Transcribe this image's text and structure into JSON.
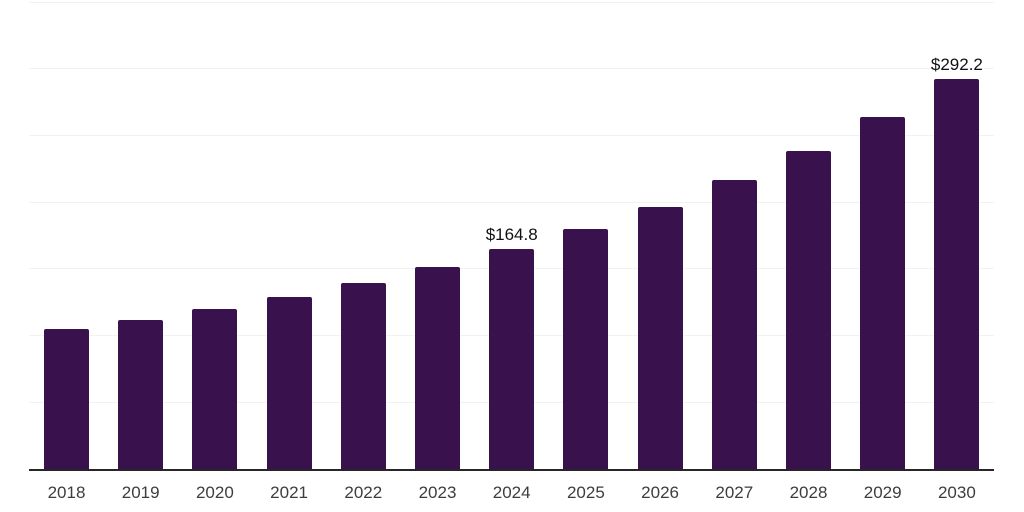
{
  "chart_data": {
    "type": "bar",
    "title": "",
    "xlabel": "",
    "ylabel": "",
    "categories": [
      "2018",
      "2019",
      "2020",
      "2021",
      "2022",
      "2023",
      "2024",
      "2025",
      "2026",
      "2027",
      "2028",
      "2029",
      "2030"
    ],
    "values": [
      105.0,
      111.4,
      120.2,
      129.0,
      139.4,
      151.8,
      164.8,
      180.1,
      196.8,
      216.8,
      238.5,
      263.8,
      292.2
    ],
    "data_labels": [
      {
        "index": 6,
        "label": "$164.8"
      },
      {
        "index": 12,
        "label": "$292.2"
      }
    ],
    "ylim": [
      0,
      350
    ],
    "gridline_step": 50,
    "grid": "horizontal-only",
    "legend": "none",
    "colors": {
      "bar": "#39114d",
      "axis_line": "#262626",
      "gridline": "#f2f2f3",
      "tick_label": "#3d3d3d",
      "data_label": "#111111",
      "background": "#ffffff"
    }
  }
}
